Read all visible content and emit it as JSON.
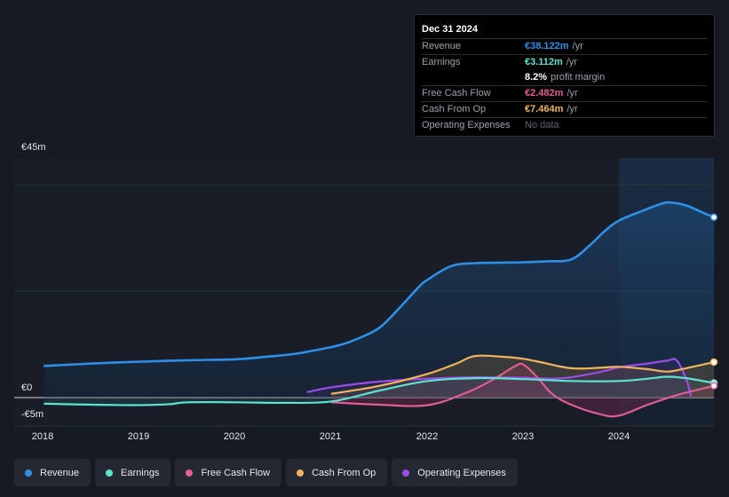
{
  "tooltip": {
    "date": "Dec 31 2024",
    "rows": [
      {
        "label": "Revenue",
        "value": "€38.122m",
        "unit": "/yr",
        "color": "#2f8fe6"
      },
      {
        "label": "Earnings",
        "value": "€3.112m",
        "unit": "/yr",
        "color": "#5ee3d0"
      },
      {
        "label": "",
        "value": "8.2%",
        "unit": "profit margin",
        "color": "#ffffff"
      },
      {
        "label": "Free Cash Flow",
        "value": "€2.482m",
        "unit": "/yr",
        "color": "#e05d98"
      },
      {
        "label": "Cash From Op",
        "value": "€7.464m",
        "unit": "/yr",
        "color": "#f0b35e"
      },
      {
        "label": "Operating Expenses",
        "value": "No data",
        "unit": "",
        "color": "#5c626b"
      }
    ]
  },
  "chart_data": {
    "type": "line",
    "title": "",
    "xlabel": "",
    "ylabel": "",
    "y_tick_labels": [
      "€45m",
      "€0",
      "-€5m"
    ],
    "x_tick_labels": [
      "2018",
      "2019",
      "2020",
      "2021",
      "2022",
      "2023",
      "2024"
    ],
    "xlim": [
      2017.98,
      2024.99
    ],
    "ylim": [
      -5,
      45
    ],
    "highlight_from": 2024.0,
    "series": [
      {
        "name": "Revenue",
        "color": "#2f8fe6",
        "x": [
          2018.0,
          2018.5,
          2019.0,
          2019.5,
          2020.0,
          2020.3,
          2020.6,
          2020.9,
          2021.1,
          2021.3,
          2021.5,
          2021.7,
          2021.9,
          2022.0,
          2022.25,
          2022.5,
          2022.75,
          2023.0,
          2023.25,
          2023.5,
          2023.7,
          2023.85,
          2024.0,
          2024.25,
          2024.45,
          2024.55,
          2024.7,
          2024.85,
          2024.99
        ],
        "values": [
          6.7,
          7.2,
          7.6,
          7.9,
          8.1,
          8.6,
          9.2,
          10.3,
          11.2,
          12.7,
          14.8,
          18.8,
          23.2,
          24.9,
          27.8,
          28.4,
          28.5,
          28.6,
          28.8,
          29.2,
          32.3,
          35.2,
          37.4,
          39.5,
          41.0,
          41.2,
          40.6,
          39.3,
          38.1
        ]
      },
      {
        "name": "Earnings",
        "color": "#5ee3d0",
        "x": [
          2018.0,
          2018.5,
          2019.0,
          2019.3,
          2019.5,
          2020.0,
          2020.5,
          2021.0,
          2021.5,
          2022.0,
          2022.5,
          2023.0,
          2023.5,
          2024.0,
          2024.3,
          2024.5,
          2024.7,
          2024.99
        ],
        "values": [
          -1.3,
          -1.5,
          -1.6,
          -1.4,
          -1.0,
          -1.0,
          -1.1,
          -0.8,
          1.5,
          3.5,
          4.1,
          3.9,
          3.5,
          3.5,
          4.0,
          4.4,
          4.1,
          3.1
        ]
      },
      {
        "name": "Free Cash Flow",
        "color": "#e05d98",
        "x": [
          2021.0,
          2021.5,
          2022.0,
          2022.4,
          2022.7,
          2022.9,
          2023.0,
          2023.15,
          2023.3,
          2023.5,
          2023.8,
          2024.0,
          2024.3,
          2024.6,
          2024.99
        ],
        "values": [
          -1.0,
          -1.5,
          -1.6,
          1.0,
          4.0,
          6.5,
          7.0,
          4.2,
          0.8,
          -1.5,
          -3.5,
          -3.8,
          -1.5,
          0.5,
          2.5
        ]
      },
      {
        "name": "Cash From Op",
        "color": "#f0b35e",
        "x": [
          2021.0,
          2021.5,
          2022.0,
          2022.3,
          2022.5,
          2022.8,
          2023.0,
          2023.2,
          2023.5,
          2023.8,
          2024.0,
          2024.3,
          2024.5,
          2024.7,
          2024.99
        ],
        "values": [
          0.8,
          2.5,
          5.0,
          7.2,
          8.8,
          8.6,
          8.2,
          7.4,
          6.2,
          6.3,
          6.5,
          6.0,
          5.5,
          6.2,
          7.5
        ]
      },
      {
        "name": "Operating Expenses",
        "color": "#9a4ee6",
        "x": [
          2020.75,
          2021.0,
          2021.5,
          2022.0,
          2022.5,
          2023.0,
          2023.3,
          2023.5,
          2023.8,
          2024.0,
          2024.3,
          2024.5,
          2024.6,
          2024.7,
          2024.75
        ],
        "values": [
          1.2,
          2.2,
          3.4,
          4.0,
          4.3,
          4.2,
          4.0,
          4.3,
          5.4,
          6.4,
          7.2,
          7.8,
          7.9,
          4.0,
          0.4
        ]
      }
    ]
  },
  "legend": [
    {
      "label": "Revenue",
      "color": "#2f8fe6"
    },
    {
      "label": "Earnings",
      "color": "#5ee3d0"
    },
    {
      "label": "Free Cash Flow",
      "color": "#e05d98"
    },
    {
      "label": "Cash From Op",
      "color": "#f0b35e"
    },
    {
      "label": "Operating Expenses",
      "color": "#9a4ee6"
    }
  ]
}
